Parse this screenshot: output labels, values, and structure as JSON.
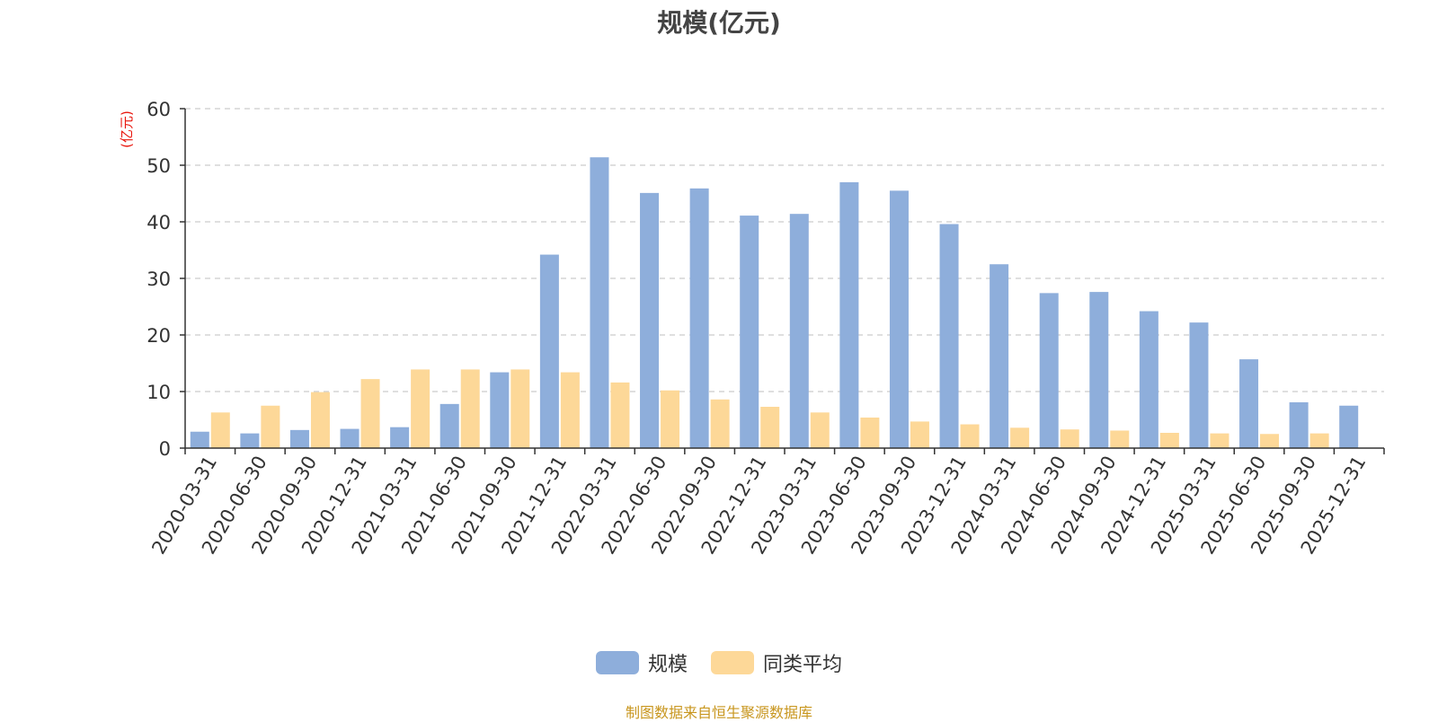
{
  "chart_data": {
    "type": "bar",
    "title": "规模(亿元)",
    "ylabel": "(亿元)",
    "xlabel": "",
    "ylim": [
      0,
      60
    ],
    "yticks": [
      0,
      10,
      20,
      30,
      40,
      50,
      60
    ],
    "grid": true,
    "legend_position": "bottom",
    "categories": [
      "2020-03-31",
      "2020-06-30",
      "2020-09-30",
      "2020-12-31",
      "2021-03-31",
      "2021-06-30",
      "2021-09-30",
      "2021-12-31",
      "2022-03-31",
      "2022-06-30",
      "2022-09-30",
      "2022-12-31",
      "2023-03-31",
      "2023-06-30",
      "2023-09-30",
      "2023-12-31",
      "2024-03-31",
      "2024-06-30",
      "2024-09-30",
      "2024-12-31",
      "2025-03-31",
      "2025-06-30",
      "2025-09-30",
      "2025-12-31"
    ],
    "series": [
      {
        "name": "规模",
        "color": "#8eaedb",
        "values": [
          2.9,
          2.6,
          3.2,
          3.4,
          3.7,
          7.8,
          13.4,
          34.2,
          51.4,
          45.1,
          45.9,
          41.1,
          41.4,
          47.0,
          45.5,
          39.6,
          32.5,
          27.4,
          27.6,
          24.2,
          22.2,
          15.7,
          8.1,
          7.5
        ]
      },
      {
        "name": "同类平均",
        "color": "#fdd898",
        "values": [
          6.3,
          7.5,
          9.9,
          12.2,
          13.9,
          13.9,
          13.9,
          13.4,
          11.6,
          10.2,
          8.6,
          7.3,
          6.3,
          5.4,
          4.7,
          4.2,
          3.6,
          3.3,
          3.1,
          2.7,
          2.6,
          2.5,
          2.6,
          null
        ]
      }
    ]
  },
  "footer": {
    "source": "制图数据来自恒生聚源数据库"
  }
}
